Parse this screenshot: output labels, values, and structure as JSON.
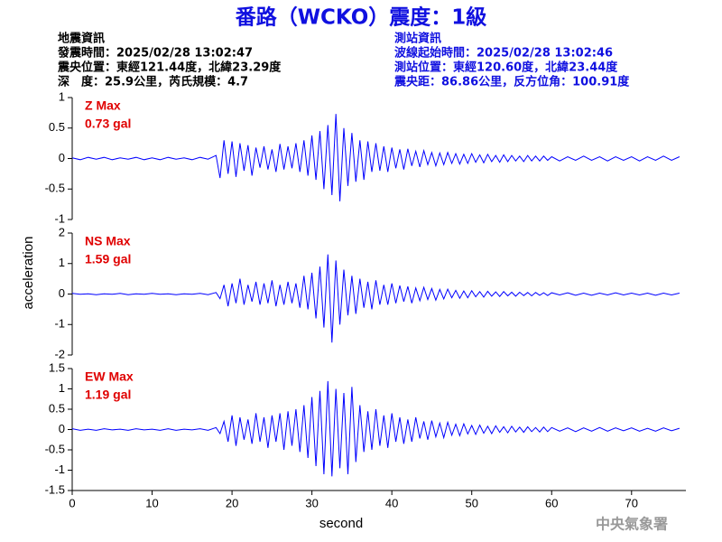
{
  "header": {
    "title": "番路（WCKO）震度：1級",
    "left": [
      "地震資訊",
      "發震時間：2025/02/28 13:02:47",
      "震央位置：東經121.44度，北緯23.29度",
      "深　度：25.9公里，芮氏規模：4.7"
    ],
    "right": [
      "測站資訊",
      "波線起始時間：2025/02/28 13:02:46",
      "測站位置：東經120.60度，北緯23.44度",
      "震央距：86.86公里，反方位角：100.91度"
    ],
    "logo": "中央氣象署"
  },
  "chart_data": {
    "type": "line",
    "x_label": "second",
    "y_label": "acceleration",
    "color": "#0000ff",
    "xlim": [
      0,
      76.8
    ],
    "xticks": [
      0,
      10,
      20,
      30,
      40,
      50,
      60,
      70
    ],
    "x": [
      0,
      1,
      2,
      3,
      4,
      5,
      6,
      7,
      8,
      9,
      10,
      11,
      12,
      13,
      14,
      15,
      16,
      17,
      18,
      18.5,
      19,
      19.5,
      20,
      20.5,
      21,
      21.5,
      22,
      22.5,
      23,
      23.5,
      24,
      24.5,
      25,
      25.5,
      26,
      26.5,
      27,
      27.5,
      28,
      28.5,
      29,
      29.5,
      30,
      30.5,
      31,
      31.5,
      32,
      32.5,
      33,
      33.5,
      34,
      34.5,
      35,
      35.5,
      36,
      36.5,
      37,
      37.5,
      38,
      38.5,
      39,
      39.5,
      40,
      40.5,
      41,
      41.5,
      42,
      42.5,
      43,
      43.5,
      44,
      44.5,
      45,
      45.5,
      46,
      46.5,
      47,
      47.5,
      48,
      48.5,
      49,
      49.5,
      50,
      50.5,
      51,
      51.5,
      52,
      52.5,
      53,
      53.5,
      54,
      54.5,
      55,
      55.5,
      56,
      56.5,
      57,
      57.5,
      58,
      58.5,
      59,
      59.5,
      60,
      61,
      62,
      63,
      64,
      65,
      66,
      67,
      68,
      69,
      70,
      71,
      72,
      73,
      74,
      75,
      76
    ],
    "panels": [
      {
        "name": "Z Max",
        "annotation": "0.73 gal",
        "ylim": [
          -1,
          1
        ],
        "yticks": [
          -1,
          -0.5,
          0,
          0.5,
          1
        ],
        "values": [
          0.01,
          -0.02,
          0.02,
          -0.01,
          0.02,
          -0.02,
          0.01,
          -0.01,
          0.02,
          -0.02,
          0.01,
          -0.02,
          0.02,
          -0.01,
          0.01,
          -0.02,
          0.02,
          -0.01,
          0.05,
          -0.32,
          0.3,
          -0.25,
          0.28,
          -0.3,
          0.25,
          -0.2,
          0.22,
          -0.28,
          0.18,
          -0.15,
          0.2,
          -0.18,
          0.15,
          -0.22,
          0.24,
          -0.18,
          0.2,
          -0.16,
          0.25,
          -0.22,
          0.3,
          -0.28,
          0.38,
          -0.35,
          0.45,
          -0.5,
          0.55,
          -0.6,
          0.73,
          -0.7,
          0.5,
          -0.45,
          0.42,
          -0.38,
          0.3,
          -0.35,
          0.28,
          -0.22,
          0.25,
          -0.2,
          0.2,
          -0.22,
          0.18,
          -0.16,
          0.15,
          -0.18,
          0.16,
          -0.12,
          0.12,
          -0.14,
          0.13,
          -0.1,
          0.1,
          -0.12,
          0.09,
          -0.1,
          0.1,
          -0.08,
          0.08,
          -0.09,
          0.07,
          -0.08,
          0.08,
          -0.06,
          0.06,
          -0.07,
          0.07,
          -0.05,
          0.05,
          -0.06,
          0.06,
          -0.05,
          0.05,
          -0.04,
          0.04,
          -0.05,
          0.05,
          -0.04,
          0.04,
          -0.04,
          0.04,
          -0.03,
          0.03,
          -0.04,
          0.03,
          -0.03,
          0.04,
          -0.03,
          0.03,
          -0.04,
          0.03,
          -0.03,
          0.03,
          -0.04,
          0.03,
          -0.03,
          0.04,
          -0.03,
          0.03
        ]
      },
      {
        "name": "NS Max",
        "annotation": "1.59 gal",
        "ylim": [
          -2,
          2
        ],
        "yticks": [
          -2,
          -1,
          0,
          1,
          2
        ],
        "values": [
          0.02,
          -0.01,
          0.01,
          -0.02,
          0.01,
          -0.01,
          0.02,
          -0.02,
          0.01,
          -0.01,
          0.02,
          -0.01,
          0.01,
          -0.02,
          0.01,
          -0.01,
          0.02,
          -0.02,
          0.05,
          -0.15,
          0.3,
          -0.4,
          0.35,
          -0.3,
          0.5,
          -0.35,
          0.3,
          -0.25,
          0.4,
          -0.35,
          0.35,
          -0.3,
          0.45,
          -0.4,
          0.3,
          -0.35,
          0.4,
          -0.3,
          0.35,
          -0.45,
          0.6,
          -0.5,
          0.7,
          -0.8,
          0.9,
          -1.1,
          1.3,
          -1.59,
          1.1,
          -1.0,
          0.8,
          -0.7,
          0.6,
          -0.65,
          0.5,
          -0.45,
          0.4,
          -0.5,
          0.45,
          -0.35,
          0.3,
          -0.35,
          0.35,
          -0.3,
          0.28,
          -0.25,
          0.25,
          -0.3,
          0.2,
          -0.22,
          0.22,
          -0.18,
          0.18,
          -0.2,
          0.15,
          -0.16,
          0.16,
          -0.12,
          0.12,
          -0.14,
          0.1,
          -0.12,
          0.11,
          -0.09,
          0.08,
          -0.1,
          0.09,
          -0.07,
          0.07,
          -0.08,
          0.08,
          -0.06,
          0.06,
          -0.07,
          0.06,
          -0.05,
          0.05,
          -0.06,
          0.05,
          -0.04,
          0.04,
          -0.05,
          0.04,
          -0.03,
          0.04,
          -0.04,
          0.03,
          -0.04,
          0.03,
          -0.03,
          0.04,
          -0.03,
          0.03,
          -0.03,
          0.03,
          -0.04,
          0.03,
          -0.03,
          0.03
        ]
      },
      {
        "name": "EW Max",
        "annotation": "1.19 gal",
        "ylim": [
          -1.5,
          1.5
        ],
        "yticks": [
          -1.5,
          -1,
          -0.5,
          0,
          0.5,
          1,
          1.5
        ],
        "values": [
          0.02,
          -0.02,
          0.01,
          -0.02,
          0.02,
          -0.01,
          0.01,
          -0.02,
          0.02,
          -0.01,
          0.01,
          -0.02,
          0.02,
          -0.02,
          0.01,
          -0.01,
          0.02,
          -0.02,
          0.05,
          -0.1,
          0.2,
          -0.3,
          0.35,
          -0.4,
          0.3,
          -0.25,
          0.25,
          -0.35,
          0.4,
          -0.3,
          0.3,
          -0.45,
          0.35,
          -0.3,
          0.4,
          -0.5,
          0.45,
          -0.4,
          0.5,
          -0.55,
          0.6,
          -0.7,
          0.8,
          -0.9,
          0.95,
          -1.1,
          1.19,
          -1.15,
          1.0,
          -0.95,
          0.9,
          -1.1,
          1.05,
          -0.8,
          0.6,
          -0.55,
          0.45,
          -0.5,
          0.5,
          -0.4,
          0.35,
          -0.45,
          0.4,
          -0.3,
          0.3,
          -0.35,
          0.25,
          -0.3,
          0.3,
          -0.22,
          0.2,
          -0.25,
          0.22,
          -0.18,
          0.16,
          -0.2,
          0.18,
          -0.14,
          0.13,
          -0.15,
          0.14,
          -0.11,
          0.1,
          -0.12,
          0.11,
          -0.09,
          0.08,
          -0.1,
          0.09,
          -0.07,
          0.07,
          -0.08,
          0.08,
          -0.06,
          0.06,
          -0.07,
          0.07,
          -0.05,
          0.05,
          -0.06,
          0.06,
          -0.05,
          0.05,
          -0.04,
          0.04,
          -0.05,
          0.04,
          -0.04,
          0.05,
          -0.04,
          0.04,
          -0.03,
          0.04,
          -0.04,
          0.03,
          -0.04,
          0.04,
          -0.03,
          0.03
        ]
      }
    ]
  }
}
